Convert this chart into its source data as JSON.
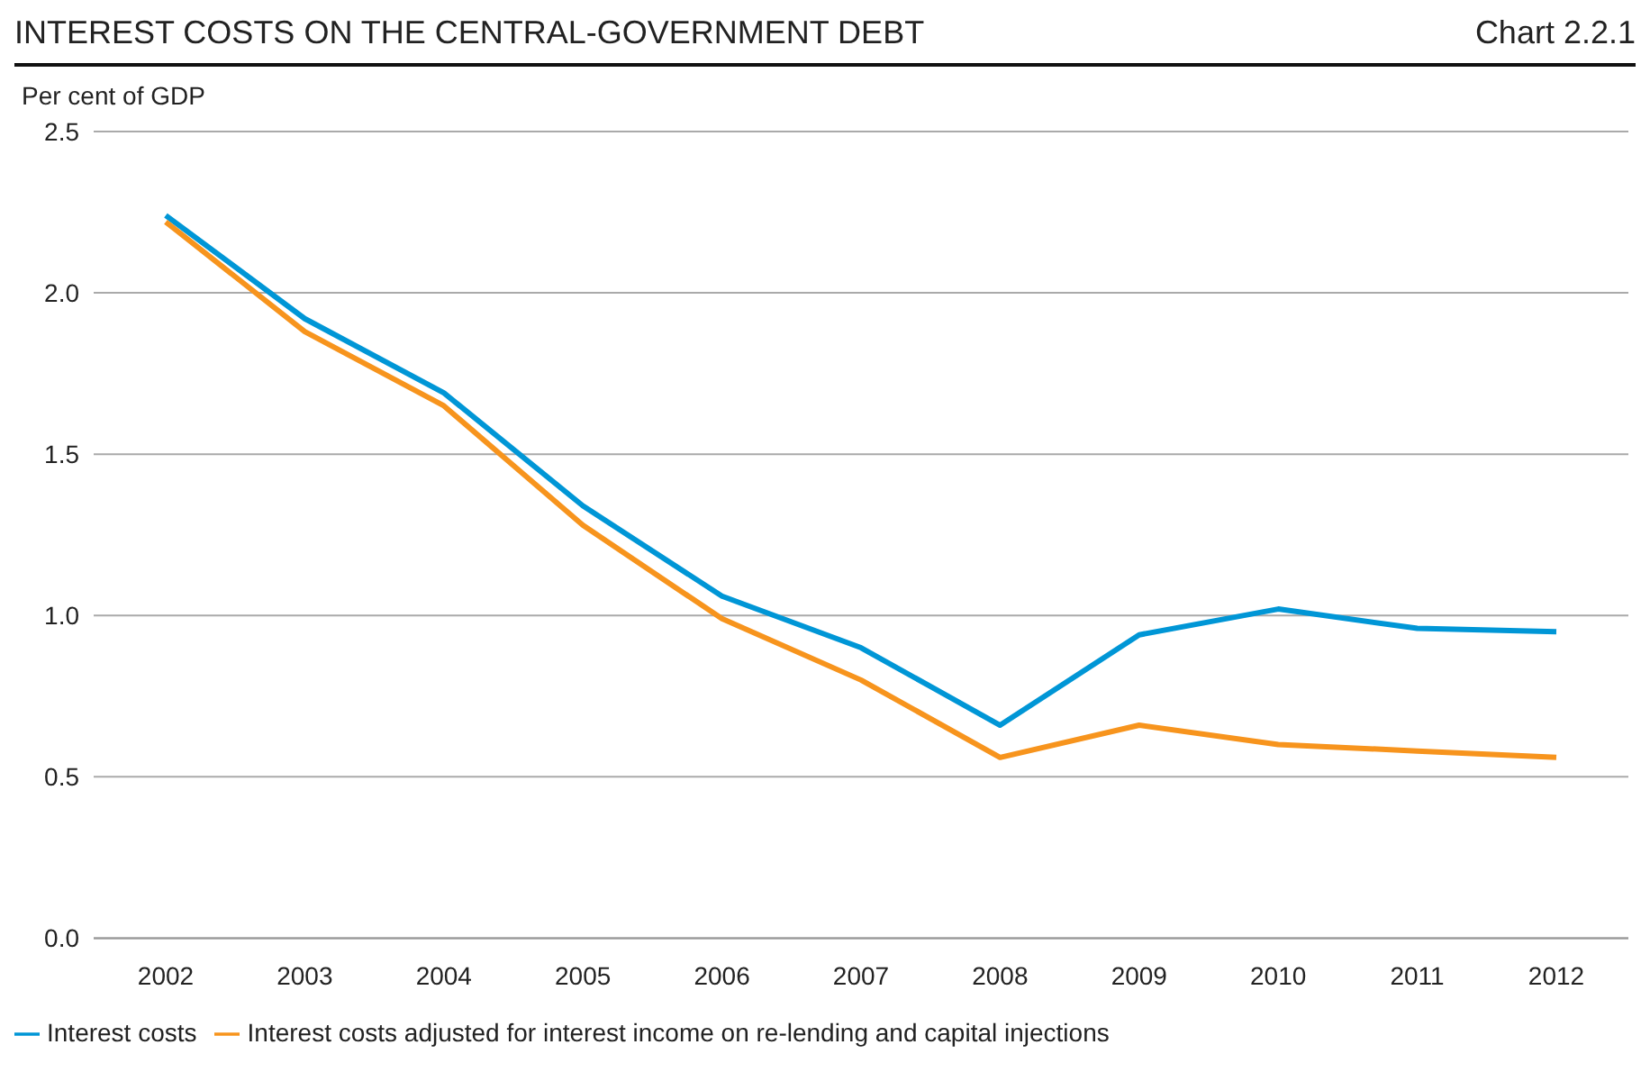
{
  "chart_data": {
    "type": "line",
    "title": "INTEREST COSTS ON THE CENTRAL-GOVERNMENT DEBT",
    "annotations": [
      "Chart 2.2.1"
    ],
    "ylabel": "Per cent of GDP",
    "categories": [
      "2002",
      "2003",
      "2004",
      "2005",
      "2006",
      "2007",
      "2008",
      "2009",
      "2010",
      "2011",
      "2012"
    ],
    "series": [
      {
        "name": "Interest costs",
        "color": "#0096d6",
        "values": [
          2.24,
          1.92,
          1.69,
          1.34,
          1.06,
          0.9,
          0.66,
          0.94,
          1.02,
          0.96,
          0.95
        ]
      },
      {
        "name": "Interest costs adjusted for interest income on re-lending and capital injections",
        "color": "#f7941d",
        "values": [
          2.22,
          1.88,
          1.65,
          1.28,
          0.99,
          0.8,
          0.56,
          0.66,
          0.6,
          0.58,
          0.56
        ]
      }
    ],
    "ylim": [
      0,
      2.5
    ],
    "yticks": [
      {
        "value": 0,
        "label": "0.0"
      },
      0.5,
      {
        "value": 1,
        "label": "1.0"
      },
      1.5,
      {
        "value": 2,
        "label": "2.0"
      },
      2.5
    ],
    "grid": "y",
    "legend": "bottom",
    "marker": "none",
    "line_style": "solid"
  }
}
